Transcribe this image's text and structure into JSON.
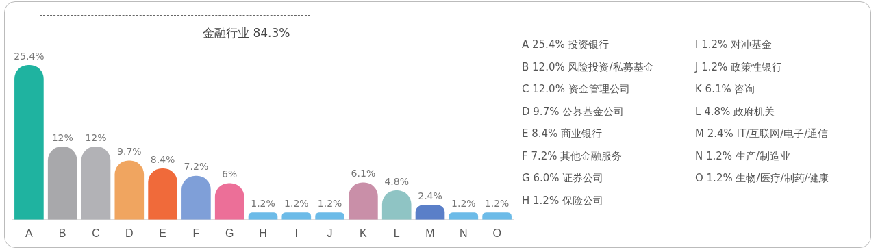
{
  "chart_data": {
    "type": "bar",
    "categories": [
      "A",
      "B",
      "C",
      "D",
      "E",
      "F",
      "G",
      "H",
      "I",
      "J",
      "K",
      "L",
      "M",
      "N",
      "O"
    ],
    "values": [
      25.4,
      12,
      12,
      9.7,
      8.4,
      7.2,
      6,
      1.2,
      1.2,
      1.2,
      6.1,
      4.8,
      2.4,
      1.2,
      1.2
    ],
    "value_labels": [
      "25.4%",
      "12%",
      "12%",
      "9.7%",
      "8.4%",
      "7.2%",
      "6%",
      "1.2%",
      "1.2%",
      "1.2%",
      "6.1%",
      "4.8%",
      "2.4%",
      "1.2%",
      "1.2%"
    ],
    "colors": [
      "#1fb3a0",
      "#a8a8ab",
      "#b2b2b6",
      "#f0a560",
      "#f06a3a",
      "#7f9fd8",
      "#ec6f98",
      "#6cbbe8",
      "#6cbbe8",
      "#6cbbe8",
      "#c98fa8",
      "#8fc4c4",
      "#5a7fc8",
      "#6cbbe8",
      "#6cbbe8"
    ],
    "annotations": [
      "金融行业 84.3%",
      "A 25.4%  投资银行",
      "B 12.0%  风险投资/私募基金",
      "C 12.0%  资金管理公司",
      "D 9.7%  公募基金公司",
      "E 8.4%  商业银行",
      "F 7.2%  其他金融服务",
      "G 6.0%  证券公司",
      "H 1.2%  保险公司",
      "I  1.2%  对冲基金",
      "J  1.2%  政策性银行",
      "K  6.1%  咨询",
      "L  4.8%  政府机关",
      "M  2.4%  IT/互联网/电子/通信",
      "N  1.2%  生产/制造业",
      "O  1.2%  生物/医疗/制药/健康"
    ],
    "grid": false,
    "legend": false
  }
}
